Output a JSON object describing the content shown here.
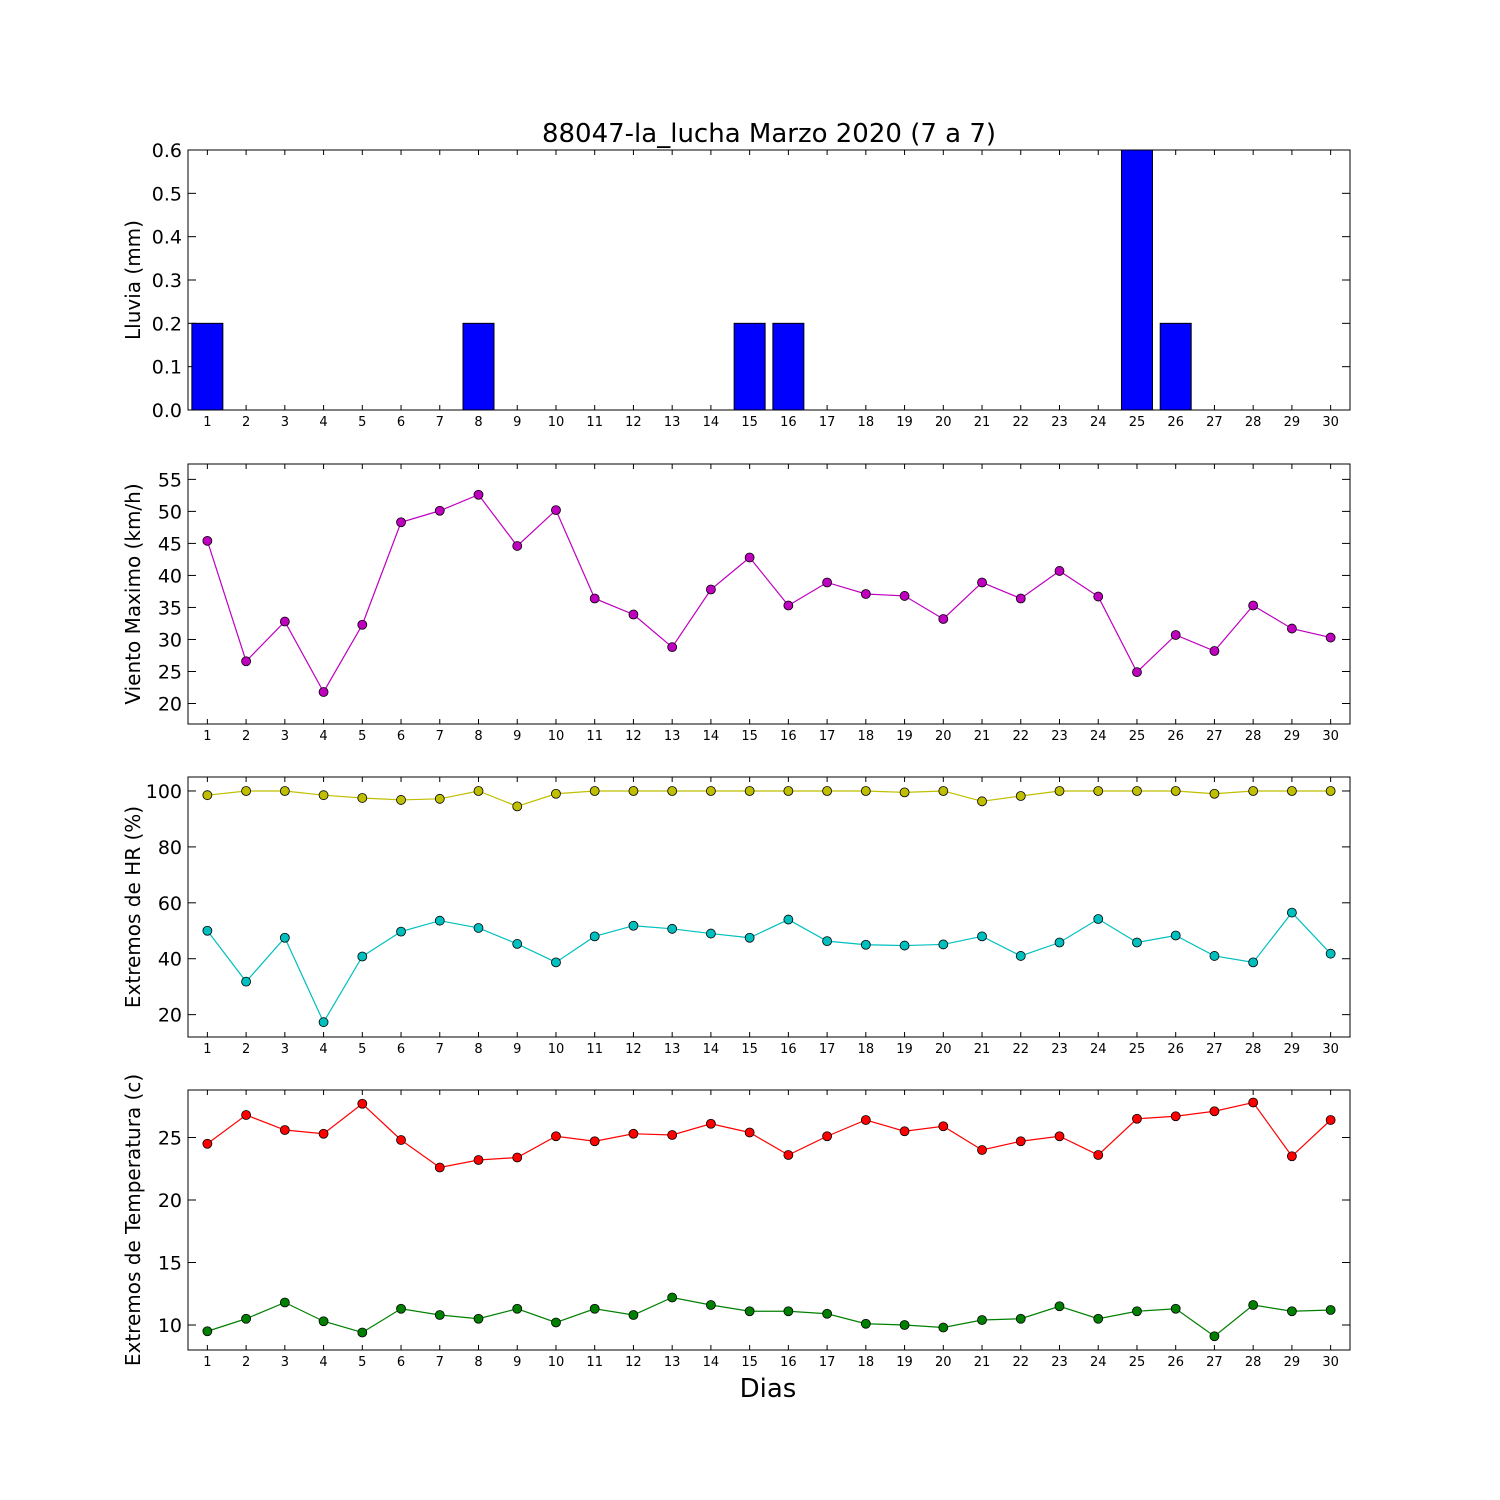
{
  "figure": {
    "title": "88047-la_lucha Marzo 2020  (7 a 7)",
    "xlabel": "Dias"
  },
  "chart_data": [
    {
      "type": "bar",
      "ylabel": "Lluvia (mm)",
      "ylim": [
        0,
        0.6
      ],
      "yticks": [
        "0.0",
        "0.1",
        "0.2",
        "0.3",
        "0.4",
        "0.5",
        "0.6"
      ],
      "categories": [
        "1",
        "2",
        "3",
        "4",
        "5",
        "6",
        "7",
        "8",
        "9",
        "10",
        "11",
        "12",
        "13",
        "14",
        "15",
        "16",
        "17",
        "18",
        "19",
        "20",
        "21",
        "22",
        "23",
        "24",
        "25",
        "26",
        "27",
        "28",
        "29",
        "30"
      ],
      "series": [
        {
          "color": "#0000ff",
          "values": [
            0.2,
            0,
            0,
            0,
            0,
            0,
            0,
            0.2,
            0,
            0,
            0,
            0,
            0,
            0,
            0.2,
            0.2,
            0,
            0,
            0,
            0,
            0,
            0,
            0,
            0,
            0.6,
            0.2,
            0,
            0,
            0,
            0
          ]
        }
      ]
    },
    {
      "type": "line",
      "ylabel": "Viento Maximo (km/h)",
      "ylim": [
        16.8,
        57.4
      ],
      "yticks": [
        "20",
        "25",
        "30",
        "35",
        "40",
        "45",
        "50",
        "55"
      ],
      "categories": [
        "1",
        "2",
        "3",
        "4",
        "5",
        "6",
        "7",
        "8",
        "9",
        "10",
        "11",
        "12",
        "13",
        "14",
        "15",
        "16",
        "17",
        "18",
        "19",
        "20",
        "21",
        "22",
        "23",
        "24",
        "25",
        "26",
        "27",
        "28",
        "29",
        "30"
      ],
      "series": [
        {
          "color": "#bf00bf",
          "values": [
            45.4,
            26.6,
            32.8,
            21.8,
            32.3,
            48.3,
            50.1,
            52.6,
            44.6,
            50.2,
            36.4,
            33.9,
            28.8,
            37.8,
            42.8,
            35.3,
            38.9,
            37.1,
            36.8,
            33.2,
            38.9,
            36.4,
            40.7,
            36.7,
            24.9,
            30.7,
            28.2,
            35.3,
            31.7,
            30.3
          ]
        }
      ]
    },
    {
      "type": "line",
      "ylabel": "Extremos de HR (%)",
      "ylim": [
        12,
        105
      ],
      "yticks": [
        "20",
        "40",
        "60",
        "80",
        "100"
      ],
      "categories": [
        "1",
        "2",
        "3",
        "4",
        "5",
        "6",
        "7",
        "8",
        "9",
        "10",
        "11",
        "12",
        "13",
        "14",
        "15",
        "16",
        "17",
        "18",
        "19",
        "20",
        "21",
        "22",
        "23",
        "24",
        "25",
        "26",
        "27",
        "28",
        "29",
        "30"
      ],
      "series": [
        {
          "color": "#bfbf00",
          "values": [
            98.5,
            100,
            100,
            98.5,
            97.5,
            96.8,
            97.2,
            100,
            94.5,
            99,
            100,
            100,
            100,
            100,
            100,
            100,
            100,
            100,
            99.5,
            100,
            96.3,
            98.2,
            100,
            100,
            100,
            100,
            99,
            100,
            100,
            100
          ]
        },
        {
          "color": "#00bfbf",
          "values": [
            50,
            31.8,
            47.5,
            17.3,
            40.8,
            49.7,
            53.6,
            51,
            45.3,
            38.7,
            48,
            51.8,
            50.7,
            49,
            47.5,
            54,
            46.3,
            45,
            44.7,
            45.1,
            48,
            41,
            45.8,
            54.2,
            45.8,
            48.3,
            41,
            38.7,
            56.5,
            41.8
          ]
        }
      ]
    },
    {
      "type": "line",
      "ylabel": "Extremos de Temperatura (c)",
      "ylim": [
        8,
        28.8
      ],
      "yticks": [
        "10",
        "15",
        "20",
        "25"
      ],
      "categories": [
        "1",
        "2",
        "3",
        "4",
        "5",
        "6",
        "7",
        "8",
        "9",
        "10",
        "11",
        "12",
        "13",
        "14",
        "15",
        "16",
        "17",
        "18",
        "19",
        "20",
        "21",
        "22",
        "23",
        "24",
        "25",
        "26",
        "27",
        "28",
        "29",
        "30"
      ],
      "series": [
        {
          "color": "#ff0000",
          "values": [
            24.5,
            26.8,
            25.6,
            25.3,
            27.7,
            24.8,
            22.6,
            23.2,
            23.4,
            25.1,
            24.7,
            25.3,
            25.2,
            26.1,
            25.4,
            23.6,
            25.1,
            26.4,
            25.5,
            25.9,
            24,
            24.7,
            25.1,
            23.6,
            26.5,
            26.7,
            27.1,
            27.8,
            23.5,
            26.4
          ]
        },
        {
          "color": "#008000",
          "values": [
            9.5,
            10.5,
            11.8,
            10.3,
            9.4,
            11.3,
            10.8,
            10.5,
            11.3,
            10.2,
            11.3,
            10.8,
            12.2,
            11.6,
            11.1,
            11.1,
            10.9,
            10.1,
            10,
            9.8,
            10.4,
            10.5,
            11.5,
            10.5,
            11.1,
            11.3,
            9.1,
            11.6,
            11.1,
            11.2
          ]
        }
      ]
    }
  ]
}
